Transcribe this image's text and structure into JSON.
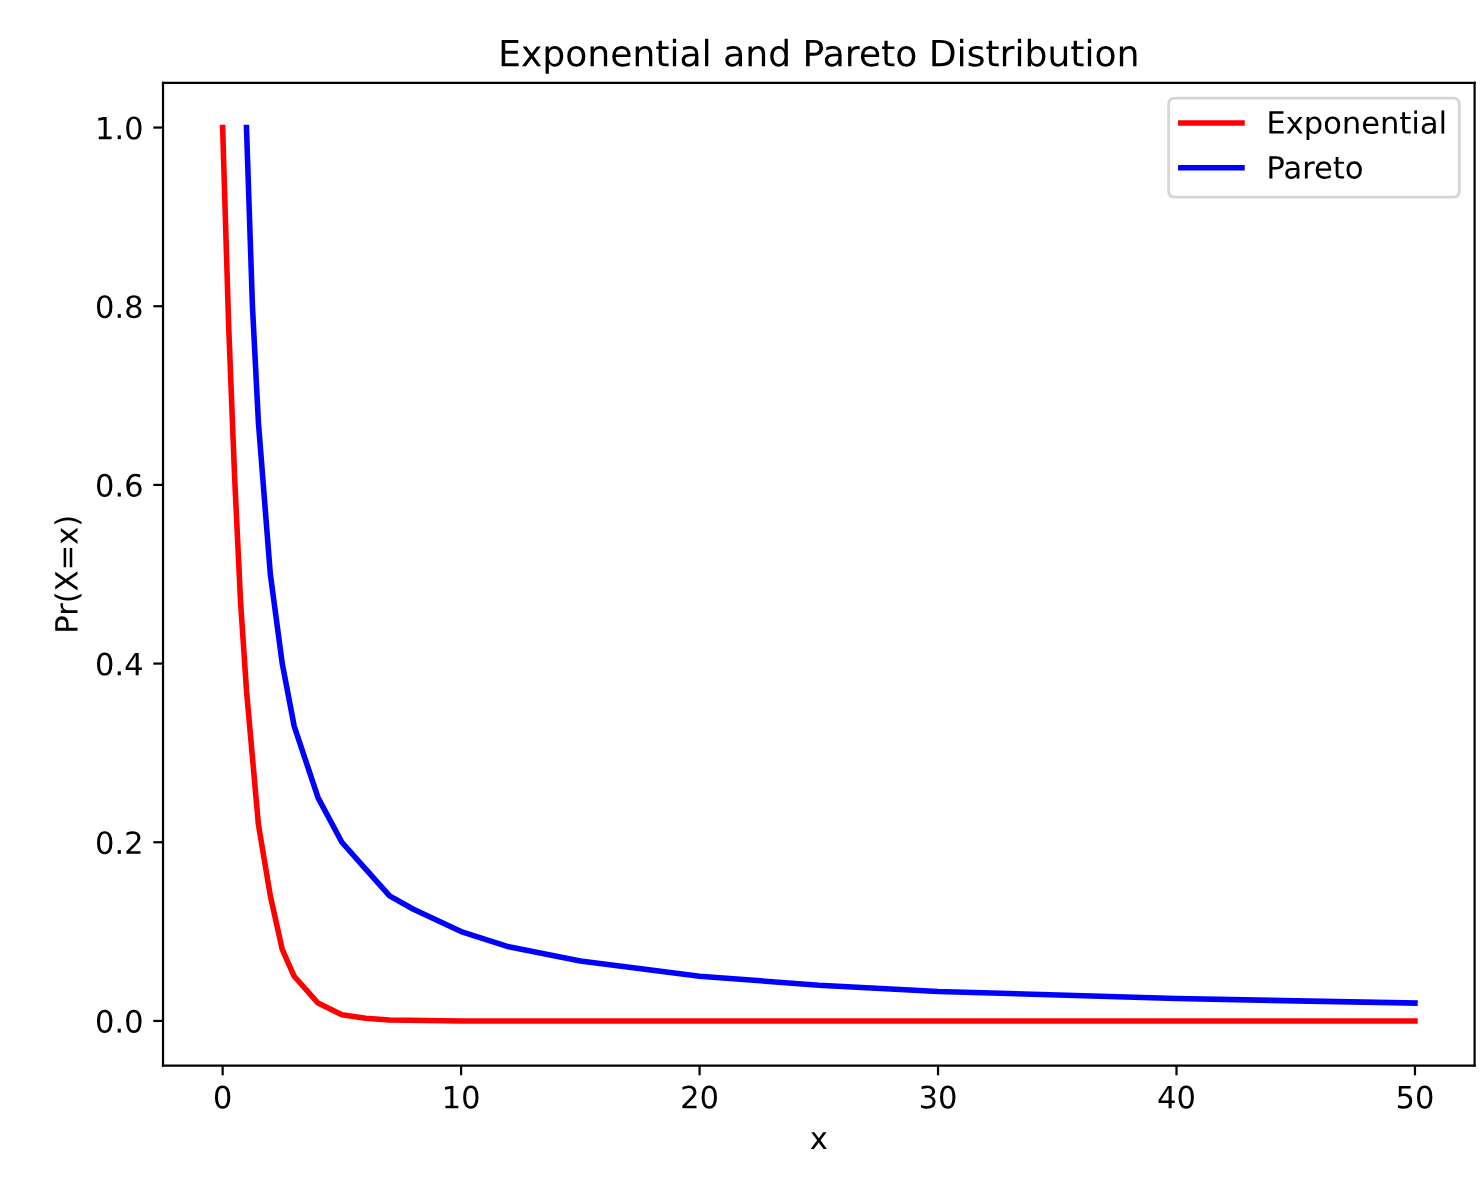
{
  "chart_data": {
    "type": "line",
    "title": "Exponential and Pareto Distribution",
    "xlabel": "x",
    "ylabel": "Pr(X=x)",
    "xlim": [
      -2.5,
      52.5
    ],
    "ylim": [
      -0.05,
      1.05
    ],
    "xticks": [
      0,
      10,
      20,
      30,
      40,
      50
    ],
    "yticks": [
      {
        "value": 0,
        "label": "0.0"
      },
      0.2,
      0.4,
      0.6,
      0.8,
      {
        "value": 1,
        "label": "1.0"
      }
    ],
    "legend": "top right",
    "grid": false,
    "marker": "none",
    "line_style": "solid",
    "series": [
      {
        "name": "Exponential",
        "color": "#ff0000",
        "x": [
          0,
          0.25,
          0.5,
          0.75,
          1,
          1.5,
          2,
          2.5,
          3,
          4,
          5,
          6,
          7,
          10,
          20,
          30,
          40,
          50
        ],
        "values": [
          1.0,
          0.78,
          0.61,
          0.47,
          0.37,
          0.22,
          0.14,
          0.08,
          0.05,
          0.02,
          0.007,
          0.003,
          0.001,
          0.0,
          0.0,
          0.0,
          0.0,
          0.0
        ]
      },
      {
        "name": "Pareto",
        "color": "#0000ff",
        "x": [
          1,
          1.25,
          1.5,
          2,
          2.5,
          3,
          4,
          5,
          6,
          7,
          8,
          10,
          12,
          15,
          20,
          25,
          30,
          40,
          50
        ],
        "values": [
          1.0,
          0.8,
          0.67,
          0.5,
          0.4,
          0.33,
          0.25,
          0.2,
          0.17,
          0.14,
          0.125,
          0.1,
          0.083,
          0.067,
          0.05,
          0.04,
          0.033,
          0.025,
          0.02
        ]
      }
    ]
  }
}
